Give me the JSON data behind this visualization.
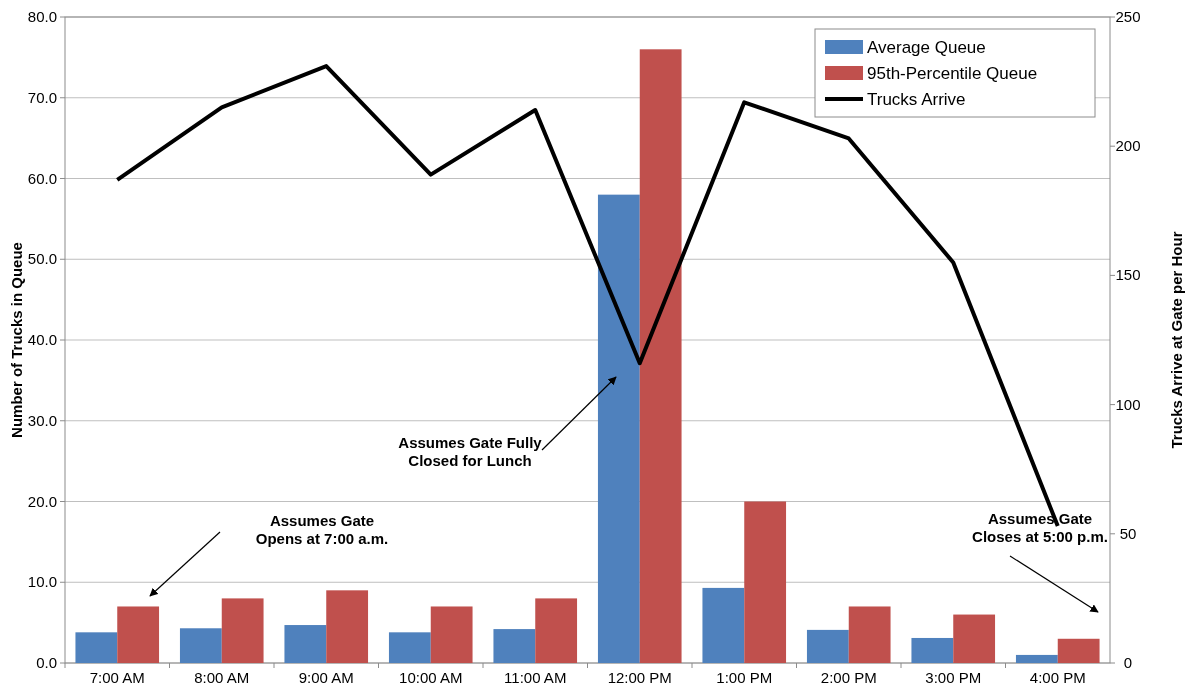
{
  "chart_data": {
    "type": "bar",
    "categories": [
      "7:00 AM",
      "8:00 AM",
      "9:00 AM",
      "10:00 AM",
      "11:00 AM",
      "12:00 PM",
      "1:00 PM",
      "2:00 PM",
      "3:00 PM",
      "4:00 PM"
    ],
    "series": [
      {
        "name": "Average Queue",
        "color": "#4f81bd",
        "values": [
          3.8,
          4.3,
          4.7,
          3.8,
          4.2,
          58.0,
          9.3,
          4.1,
          3.1,
          1.0
        ]
      },
      {
        "name": "95th-Percentile Queue",
        "color": "#c0504d",
        "values": [
          7,
          8,
          9,
          7,
          8,
          76,
          20,
          7,
          6,
          3
        ]
      },
      {
        "name": "Trucks Arrive",
        "type": "line",
        "axis": "y2",
        "color": "#000000",
        "values": [
          187,
          215,
          231,
          189,
          214,
          116,
          217,
          203,
          155,
          53
        ]
      }
    ],
    "ylabel": "Number of Trucks in Queue",
    "y2label": "Trucks Arrive at Gate per Hour",
    "ylim": [
      0,
      80
    ],
    "yticks": [
      {
        "value": 0,
        "label": "0.0"
      },
      {
        "value": 10,
        "label": "10.0"
      },
      {
        "value": 20,
        "label": "20.0"
      },
      {
        "value": 30,
        "label": "30.0"
      },
      {
        "value": 40,
        "label": "40.0"
      },
      {
        "value": 50,
        "label": "50.0"
      },
      {
        "value": 60,
        "label": "60.0"
      },
      {
        "value": 70,
        "label": "70.0"
      },
      {
        "value": 80,
        "label": "80.0"
      }
    ],
    "y2lim": [
      0,
      250
    ],
    "y2ticks": [
      0,
      50,
      100,
      150,
      200,
      250
    ],
    "grid": "y",
    "legend": "top right",
    "marker": "none",
    "annotations": [
      "Assumes Gate\nOpens at 7:00 a.m.",
      "Assumes Gate Fully\nClosed for Lunch",
      "Assumes Gate\nCloses at 5:00 p.m."
    ]
  }
}
